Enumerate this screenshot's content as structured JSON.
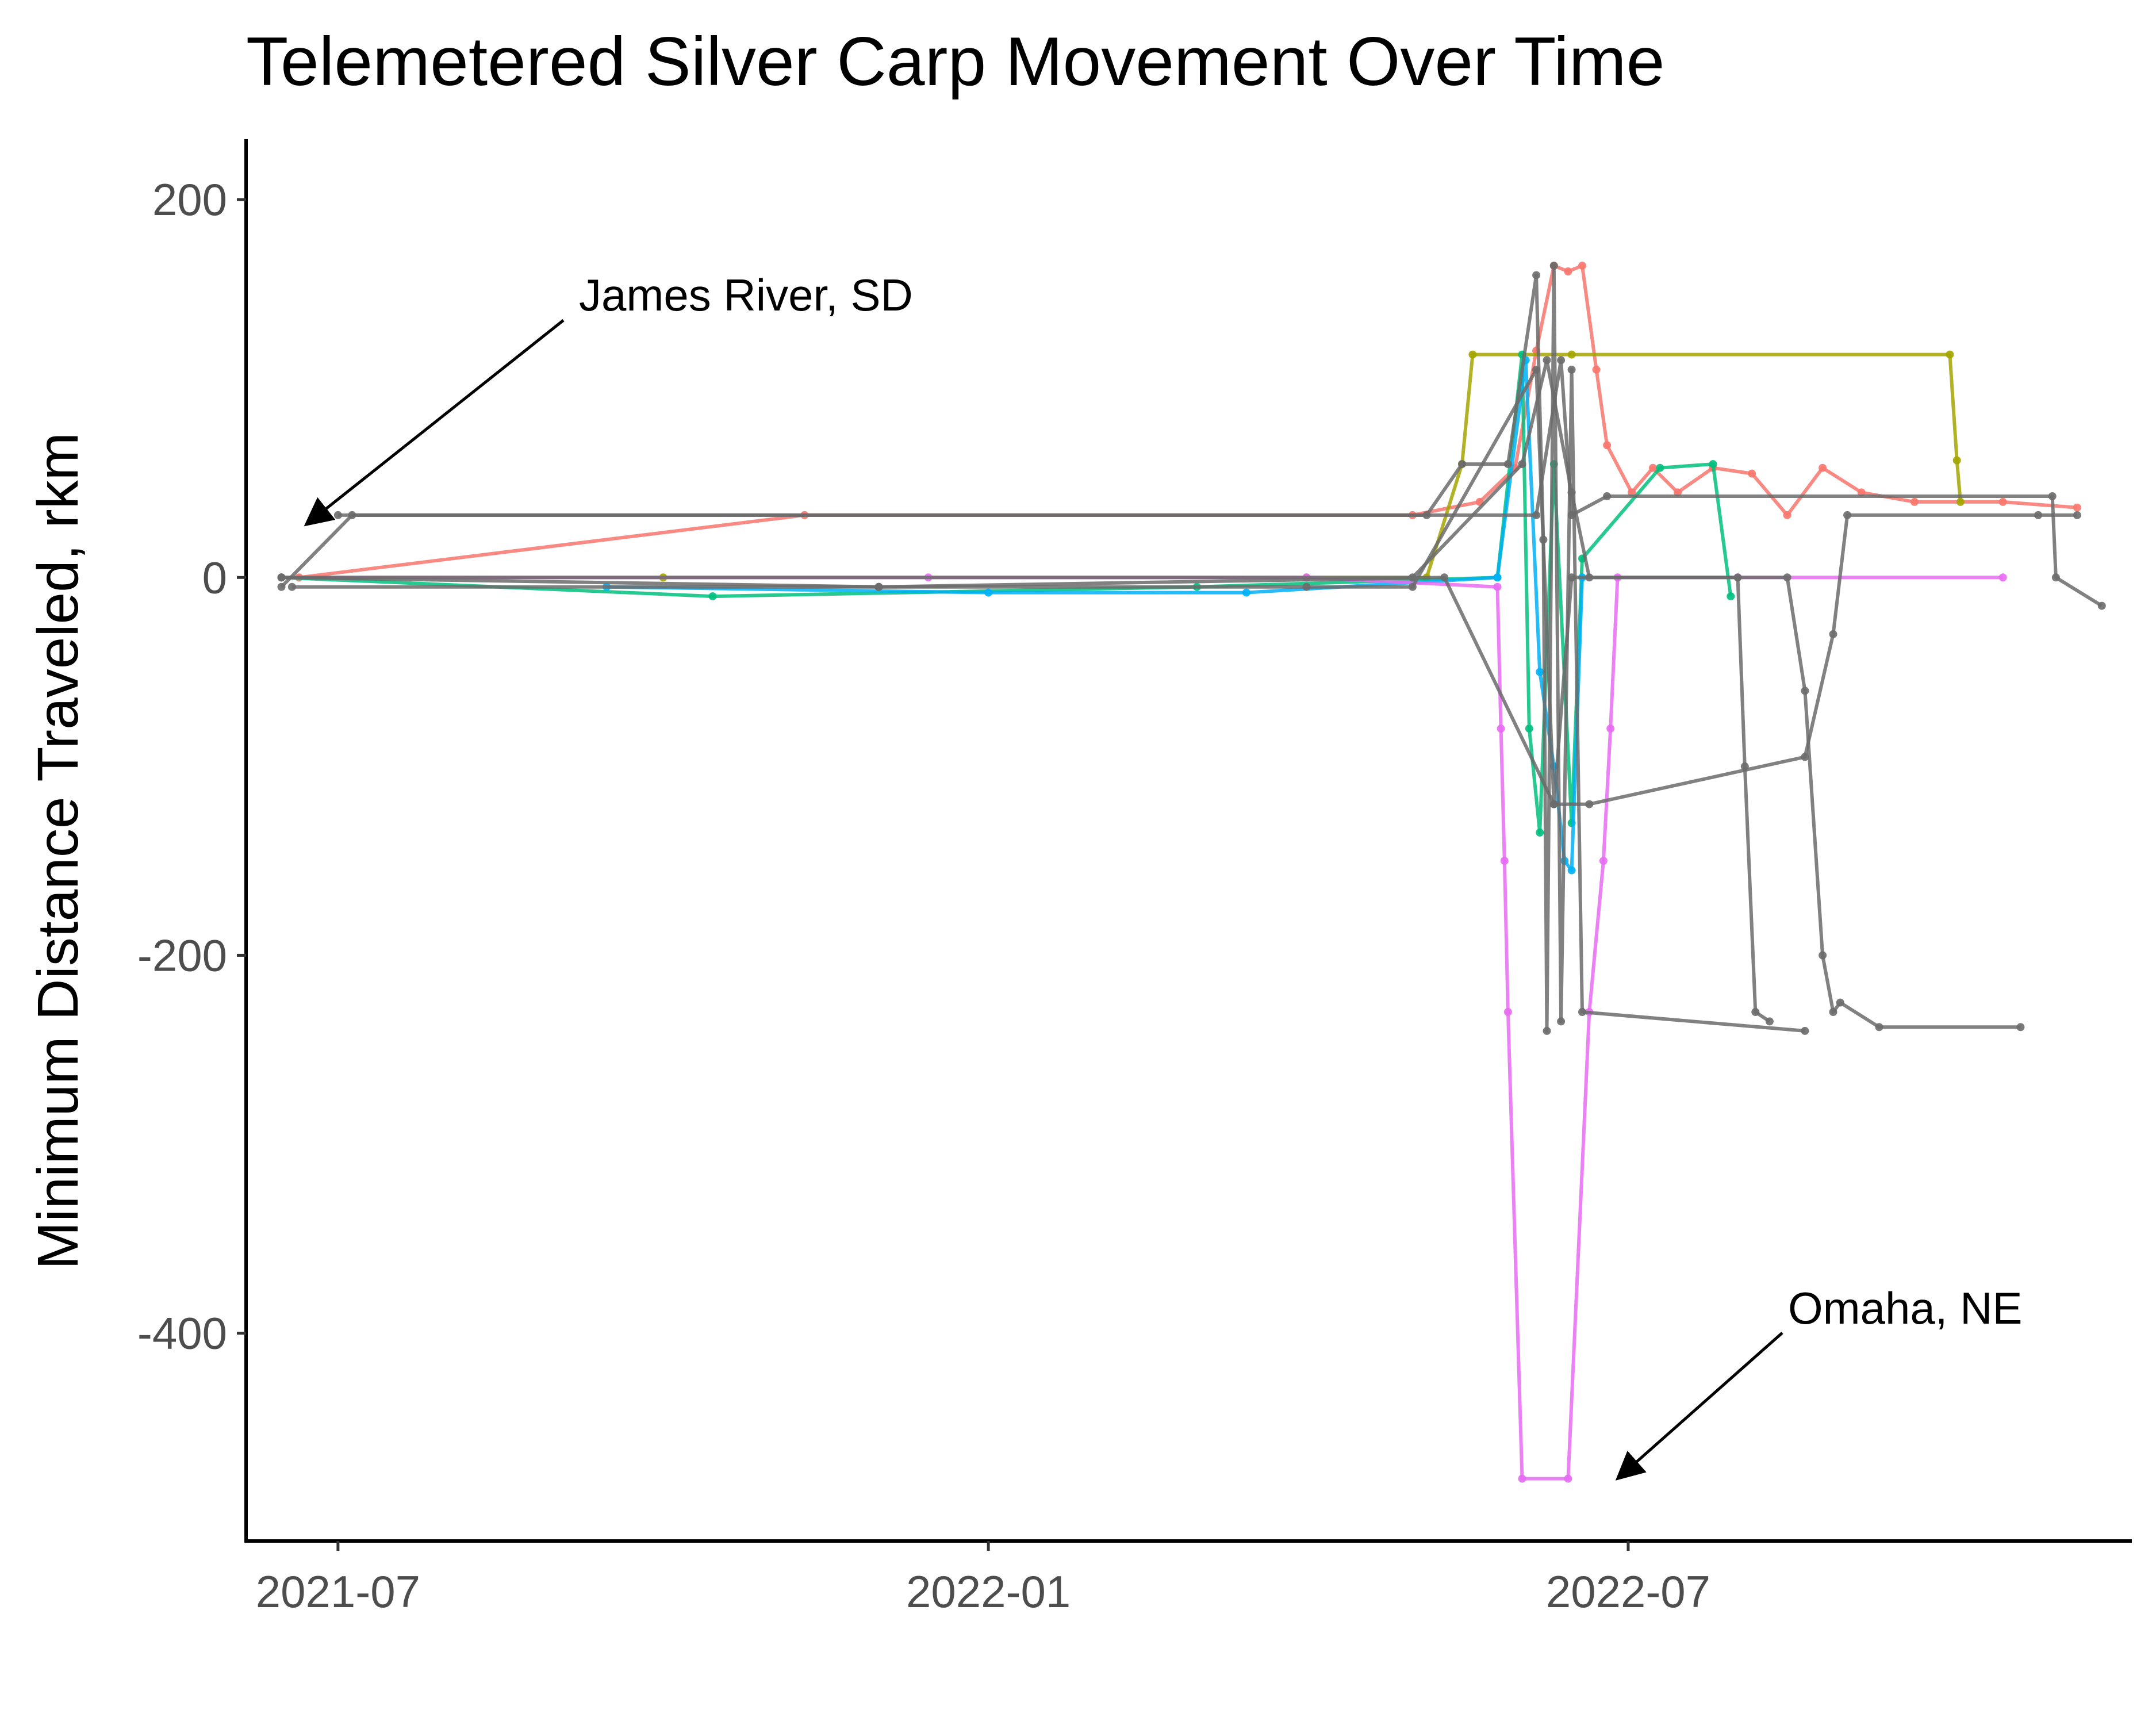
{
  "chart_data": {
    "type": "line",
    "title": "Telemetered Silver Carp Movement Over Time",
    "xlabel": "",
    "ylabel": "Minimum Distance Traveled, rkm",
    "x_ticks": [
      "2021-07",
      "2022-01",
      "2022-07"
    ],
    "y_ticks": [
      "200",
      "0",
      "-200",
      "-400"
    ],
    "xlim": [
      "2021-06-05",
      "2022-11-20"
    ],
    "ylim": [
      -510,
      232
    ],
    "grid": false,
    "legend": "none",
    "annotations": [
      {
        "text": "James River, SD",
        "arrow_to": {
          "x": "2021-06-22",
          "y": 28
        }
      },
      {
        "text": "Omaha, NE",
        "arrow_to": {
          "x": "2022-06-28",
          "y": -477
        }
      }
    ],
    "series": [
      {
        "color": "#F8766D",
        "points": [
          {
            "x": "2021-06-20",
            "y": 0
          },
          {
            "x": "2021-11-10",
            "y": 33
          },
          {
            "x": "2022-05-01",
            "y": 33
          },
          {
            "x": "2022-05-20",
            "y": 40
          },
          {
            "x": "2022-05-30",
            "y": 58
          },
          {
            "x": "2022-06-05",
            "y": 120
          },
          {
            "x": "2022-06-10",
            "y": 165
          },
          {
            "x": "2022-06-14",
            "y": 162
          },
          {
            "x": "2022-06-18",
            "y": 165
          },
          {
            "x": "2022-06-22",
            "y": 110
          },
          {
            "x": "2022-06-25",
            "y": 70
          },
          {
            "x": "2022-07-02",
            "y": 45
          },
          {
            "x": "2022-07-08",
            "y": 58
          },
          {
            "x": "2022-07-15",
            "y": 45
          },
          {
            "x": "2022-07-25",
            "y": 58
          },
          {
            "x": "2022-08-05",
            "y": 55
          },
          {
            "x": "2022-08-15",
            "y": 33
          },
          {
            "x": "2022-08-25",
            "y": 58
          },
          {
            "x": "2022-09-05",
            "y": 45
          },
          {
            "x": "2022-09-20",
            "y": 40
          },
          {
            "x": "2022-10-15",
            "y": 40
          },
          {
            "x": "2022-11-05",
            "y": 37
          }
        ]
      },
      {
        "color": "#A3A500",
        "points": [
          {
            "x": "2021-06-15",
            "y": 0
          },
          {
            "x": "2021-10-01",
            "y": 0
          },
          {
            "x": "2022-04-01",
            "y": 0
          },
          {
            "x": "2022-05-05",
            "y": 0
          },
          {
            "x": "2022-05-15",
            "y": 60
          },
          {
            "x": "2022-05-18",
            "y": 118
          },
          {
            "x": "2022-06-15",
            "y": 118
          },
          {
            "x": "2022-09-30",
            "y": 118
          },
          {
            "x": "2022-10-02",
            "y": 62
          },
          {
            "x": "2022-10-03",
            "y": 40
          }
        ]
      },
      {
        "color": "#00BF7D",
        "points": [
          {
            "x": "2021-06-15",
            "y": 0
          },
          {
            "x": "2021-10-15",
            "y": -10
          },
          {
            "x": "2022-03-01",
            "y": -5
          },
          {
            "x": "2022-05-25",
            "y": 0
          },
          {
            "x": "2022-06-01",
            "y": 118
          },
          {
            "x": "2022-06-03",
            "y": -80
          },
          {
            "x": "2022-06-06",
            "y": -135
          },
          {
            "x": "2022-06-10",
            "y": 60
          },
          {
            "x": "2022-06-15",
            "y": -130
          },
          {
            "x": "2022-06-18",
            "y": 10
          },
          {
            "x": "2022-07-10",
            "y": 58
          },
          {
            "x": "2022-07-25",
            "y": 60
          },
          {
            "x": "2022-07-30",
            "y": -10
          }
        ]
      },
      {
        "color": "#00B0F6",
        "points": [
          {
            "x": "2021-09-15",
            "y": -5
          },
          {
            "x": "2022-01-01",
            "y": -8
          },
          {
            "x": "2022-03-15",
            "y": -8
          },
          {
            "x": "2022-05-25",
            "y": 0
          },
          {
            "x": "2022-06-02",
            "y": 115
          },
          {
            "x": "2022-06-06",
            "y": -50
          },
          {
            "x": "2022-06-10",
            "y": -100
          },
          {
            "x": "2022-06-13",
            "y": -150
          },
          {
            "x": "2022-06-15",
            "y": -155
          },
          {
            "x": "2022-06-18",
            "y": 0
          }
        ]
      },
      {
        "color": "#E76BF3",
        "points": [
          {
            "x": "2021-06-15",
            "y": 0
          },
          {
            "x": "2021-12-15",
            "y": 0
          },
          {
            "x": "2022-04-01",
            "y": 0
          },
          {
            "x": "2022-05-25",
            "y": -5
          },
          {
            "x": "2022-05-26",
            "y": -80
          },
          {
            "x": "2022-05-27",
            "y": -150
          },
          {
            "x": "2022-05-28",
            "y": -230
          },
          {
            "x": "2022-06-01",
            "y": -477
          },
          {
            "x": "2022-06-14",
            "y": -477
          },
          {
            "x": "2022-06-20",
            "y": -230
          },
          {
            "x": "2022-06-24",
            "y": -150
          },
          {
            "x": "2022-06-26",
            "y": -80
          },
          {
            "x": "2022-06-28",
            "y": 0
          },
          {
            "x": "2022-08-01",
            "y": 0
          },
          {
            "x": "2022-10-15",
            "y": 0
          }
        ]
      },
      {
        "color": "#6B6B6B",
        "points": [
          {
            "x": "2021-06-15",
            "y": -5
          },
          {
            "x": "2021-07-05",
            "y": 33
          },
          {
            "x": "2022-05-05",
            "y": 33
          },
          {
            "x": "2022-05-15",
            "y": 60
          },
          {
            "x": "2022-05-28",
            "y": 60
          },
          {
            "x": "2022-06-05",
            "y": 160
          },
          {
            "x": "2022-06-07",
            "y": 20
          },
          {
            "x": "2022-06-08",
            "y": -240
          },
          {
            "x": "2022-06-10",
            "y": 165
          },
          {
            "x": "2022-06-12",
            "y": -235
          },
          {
            "x": "2022-06-15",
            "y": 110
          },
          {
            "x": "2022-06-18",
            "y": -230
          },
          {
            "x": "2022-08-20",
            "y": -240
          }
        ]
      },
      {
        "color": "#6B6B6B",
        "points": [
          {
            "x": "2021-06-15",
            "y": 0
          },
          {
            "x": "2021-12-01",
            "y": -5
          },
          {
            "x": "2022-04-01",
            "y": -5
          },
          {
            "x": "2022-05-01",
            "y": -5
          },
          {
            "x": "2022-06-05",
            "y": 110
          },
          {
            "x": "2022-06-10",
            "y": -120
          },
          {
            "x": "2022-06-15",
            "y": 0
          },
          {
            "x": "2022-08-01",
            "y": 0
          },
          {
            "x": "2022-08-03",
            "y": -100
          },
          {
            "x": "2022-08-06",
            "y": -230
          },
          {
            "x": "2022-08-10",
            "y": -235
          }
        ]
      },
      {
        "color": "#6B6B6B",
        "points": [
          {
            "x": "2021-06-15",
            "y": 0
          },
          {
            "x": "2022-05-01",
            "y": 0
          },
          {
            "x": "2022-06-01",
            "y": 60
          },
          {
            "x": "2022-06-08",
            "y": 115
          },
          {
            "x": "2022-06-15",
            "y": 45
          },
          {
            "x": "2022-06-20",
            "y": 0
          },
          {
            "x": "2022-08-15",
            "y": 0
          },
          {
            "x": "2022-08-20",
            "y": -60
          },
          {
            "x": "2022-08-25",
            "y": -200
          },
          {
            "x": "2022-08-28",
            "y": -230
          },
          {
            "x": "2022-08-30",
            "y": -225
          },
          {
            "x": "2022-09-10",
            "y": -238
          },
          {
            "x": "2022-10-20",
            "y": -238
          }
        ]
      },
      {
        "color": "#6B6B6B",
        "points": [
          {
            "x": "2021-07-01",
            "y": 33
          },
          {
            "x": "2022-06-05",
            "y": 33
          },
          {
            "x": "2022-06-12",
            "y": 115
          },
          {
            "x": "2022-06-15",
            "y": 33
          },
          {
            "x": "2022-06-25",
            "y": 43
          },
          {
            "x": "2022-10-29",
            "y": 43
          },
          {
            "x": "2022-10-30",
            "y": 0
          },
          {
            "x": "2022-11-12",
            "y": -15
          }
        ]
      },
      {
        "color": "#6B6B6B",
        "points": [
          {
            "x": "2021-06-18",
            "y": -5
          },
          {
            "x": "2021-12-01",
            "y": -5
          },
          {
            "x": "2022-05-10",
            "y": 0
          },
          {
            "x": "2022-06-10",
            "y": -120
          },
          {
            "x": "2022-06-20",
            "y": -120
          },
          {
            "x": "2022-08-20",
            "y": -95
          },
          {
            "x": "2022-08-28",
            "y": -30
          },
          {
            "x": "2022-09-01",
            "y": 33
          },
          {
            "x": "2022-10-25",
            "y": 33
          },
          {
            "x": "2022-11-05",
            "y": 33
          }
        ]
      }
    ]
  }
}
